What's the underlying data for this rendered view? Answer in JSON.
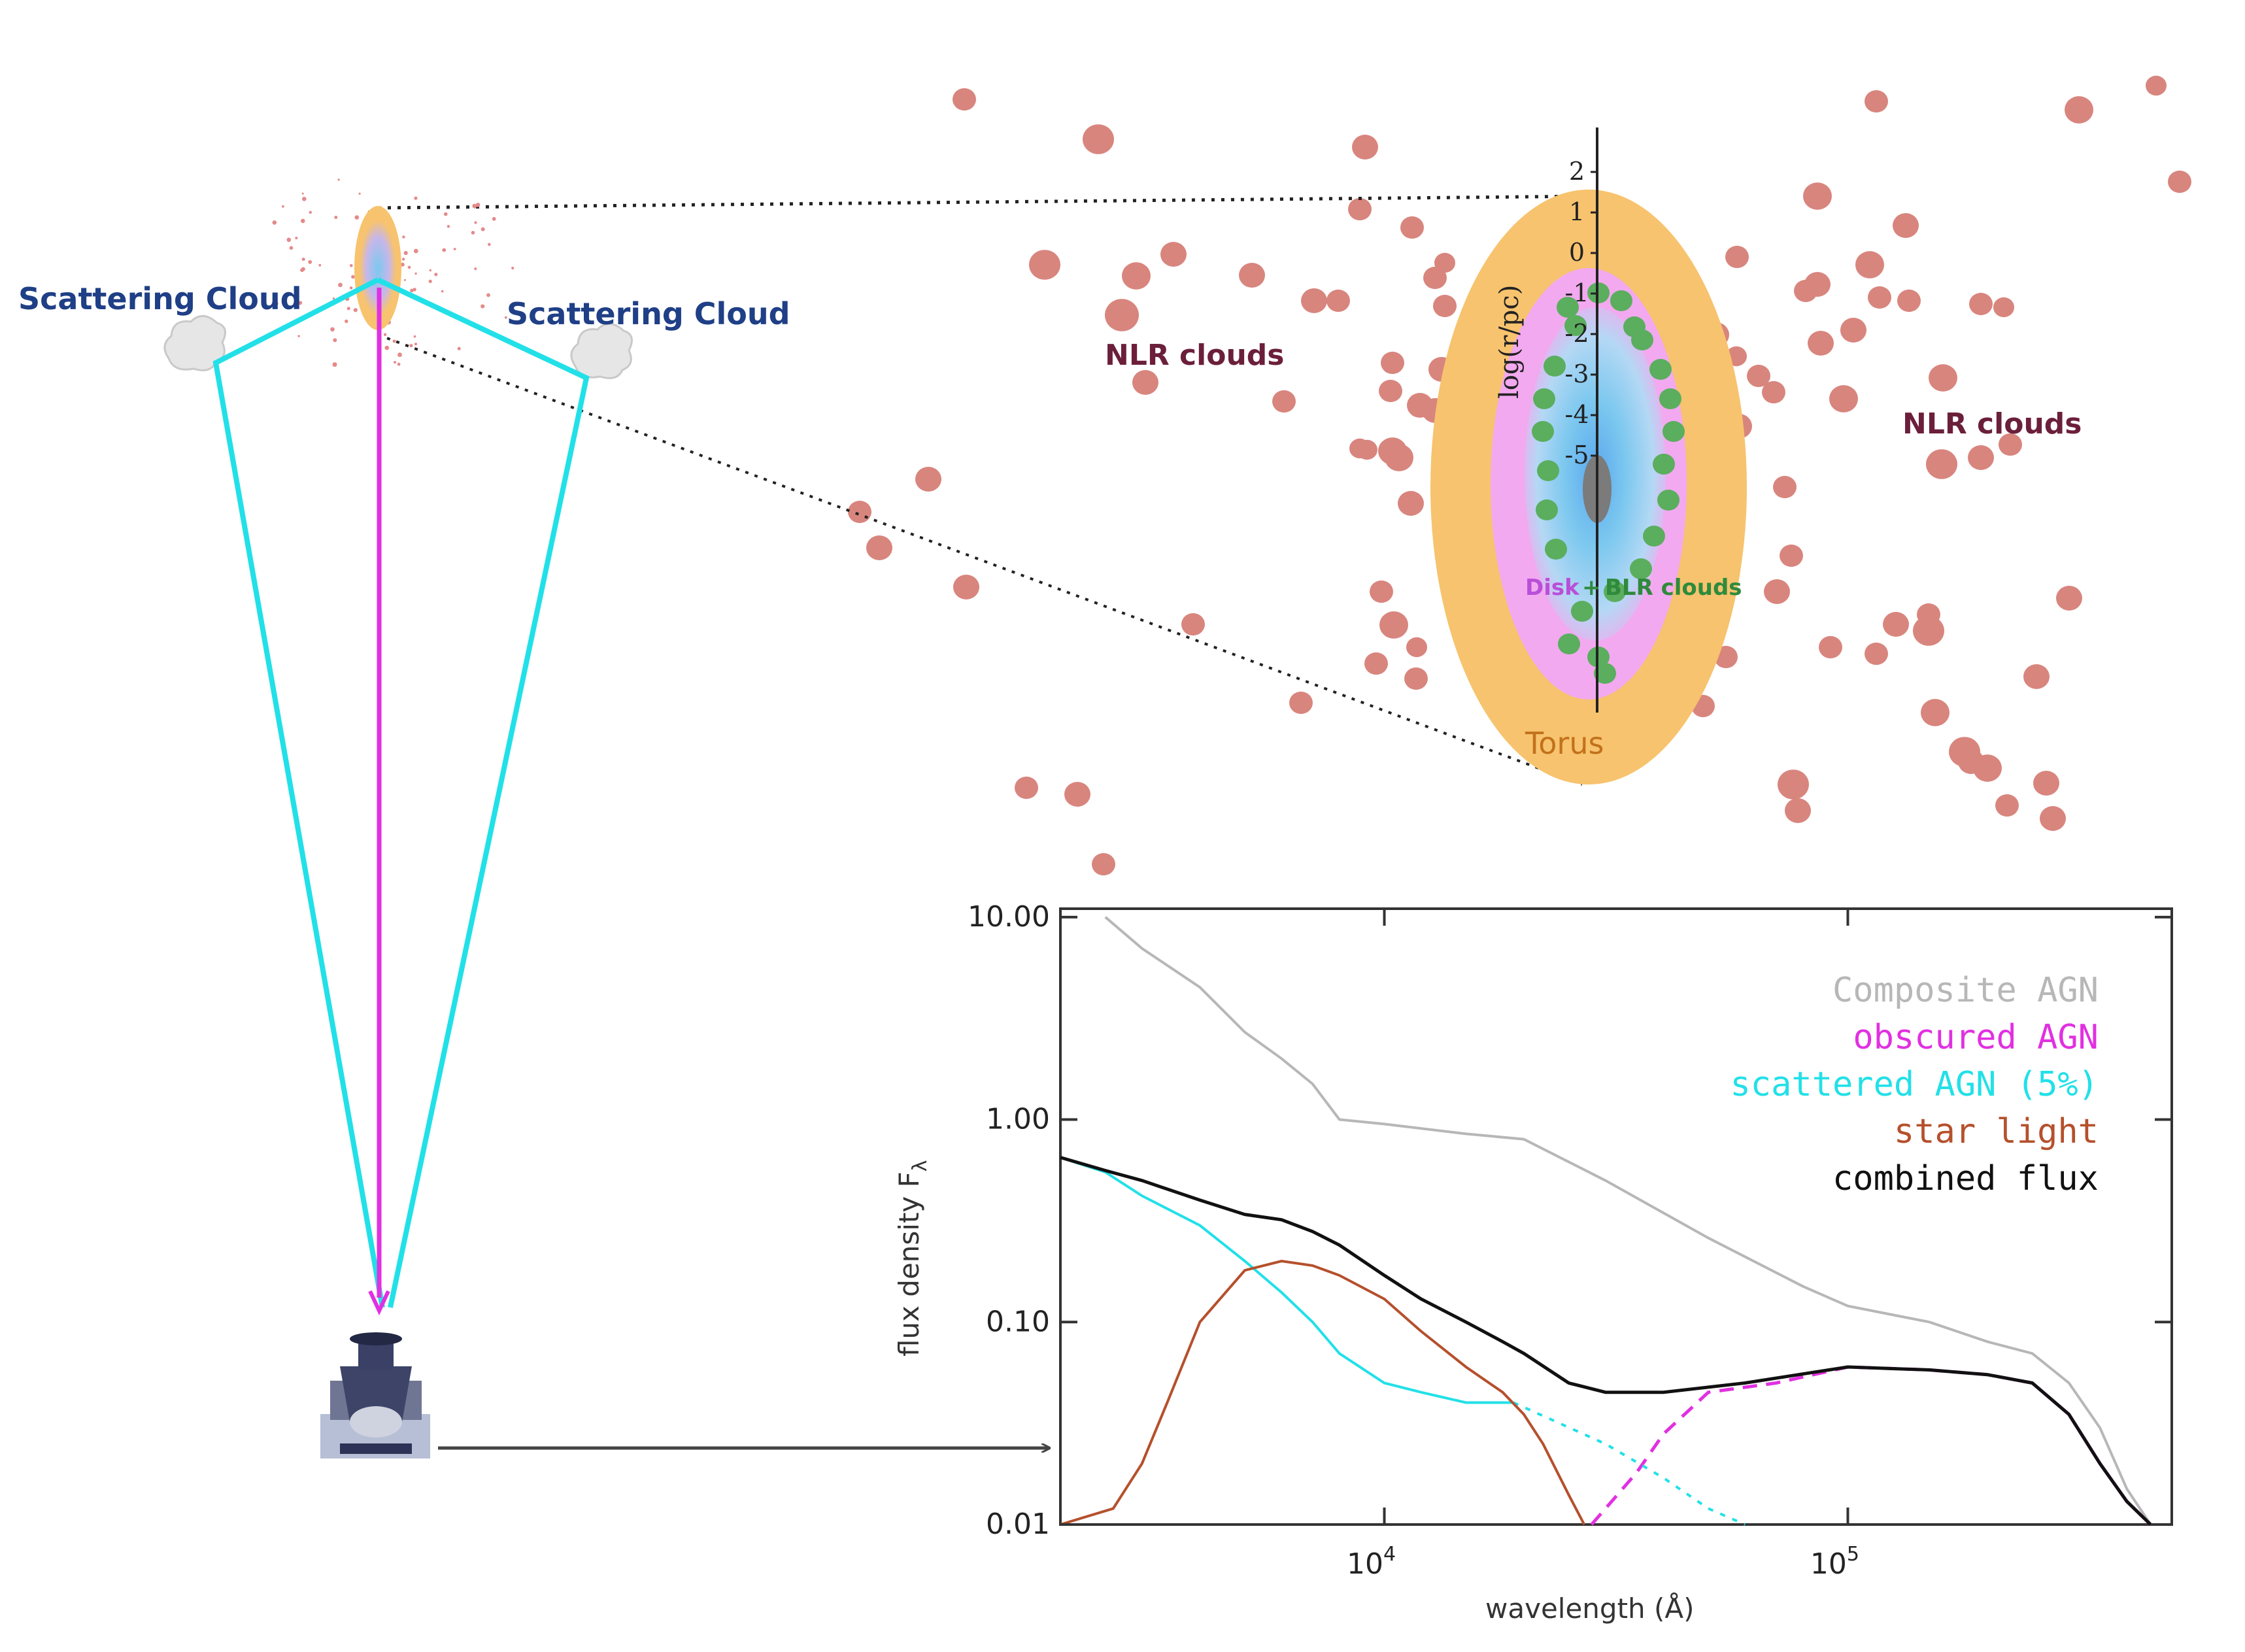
{
  "labels": {
    "scattering_cloud_left": "Scattering Cloud",
    "scattering_cloud_right": "Scattering Cloud",
    "nlr_left": "NLR clouds",
    "nlr_right": "NLR clouds",
    "torus": "Torus",
    "disk": "Disk",
    "plus": "+",
    "blr": "BLR clouds",
    "radius_axis": "log(r/pc)",
    "radius_ticks": [
      "2",
      "1",
      "0",
      "-1",
      "-2",
      "-3",
      "-4",
      "-5"
    ]
  },
  "colors": {
    "nlr": "#d8857e",
    "torus": "#f7c36e",
    "disk_pink": "#f2a9ef",
    "disk_blue": "#7cc8ef",
    "blr": "#5aae5e",
    "core": "#7b7b7b",
    "cyan": "#22e0e8",
    "magenta": "#e130e1",
    "star": "#b5502c",
    "gray": "#b7b7b7",
    "black": "#111111"
  },
  "chart_data": {
    "type": "line",
    "x_scale": "log",
    "y_scale": "log",
    "xlim": [
      2000,
      500000
    ],
    "ylim": [
      0.01,
      11
    ],
    "xlabel": "wavelength (Å)",
    "ylabel": "flux density F",
    "ylabel_sub": "λ",
    "y_ticks": [
      "0.01",
      "0.10",
      "1.00",
      "10.00"
    ],
    "y_tick_values": [
      0.01,
      0.1,
      1,
      10
    ],
    "x_ticks": [
      {
        "base": "10",
        "exp": "4",
        "value": 10000
      },
      {
        "base": "10",
        "exp": "5",
        "value": 100000
      }
    ],
    "legend": [
      {
        "label": "Composite AGN",
        "color": "#b7b7b7"
      },
      {
        "label": "obscured AGN",
        "color": "#e130e1"
      },
      {
        "label": "scattered AGN (5%)",
        "color": "#22e0e8"
      },
      {
        "label": "star light",
        "color": "#b5502c"
      },
      {
        "label": "combined flux",
        "color": "#111111"
      }
    ],
    "series": [
      {
        "name": "Composite AGN",
        "color": "#b7b7b7",
        "dash": "",
        "x": [
          2500,
          3000,
          4000,
          5000,
          6000,
          7000,
          8000,
          10000,
          15000,
          20000,
          30000,
          50000,
          80000,
          100000,
          150000,
          200000,
          250000,
          300000,
          350000,
          400000,
          450000
        ],
        "y": [
          10,
          7,
          4.5,
          2.7,
          2.0,
          1.5,
          1.0,
          0.95,
          0.85,
          0.8,
          0.5,
          0.26,
          0.15,
          0.12,
          0.1,
          0.08,
          0.07,
          0.05,
          0.03,
          0.015,
          0.01
        ]
      },
      {
        "name": "obscured AGN",
        "color": "#e130e1",
        "dash": "22 14",
        "x": [
          28000,
          30000,
          35000,
          40000,
          50000,
          70000,
          100000,
          150000,
          200000,
          250000,
          300000,
          350000,
          400000,
          450000
        ],
        "y": [
          0.01,
          0.012,
          0.018,
          0.028,
          0.045,
          0.05,
          0.06,
          0.058,
          0.055,
          0.05,
          0.035,
          0.02,
          0.013,
          0.01
        ],
        "dash_until": 250000
      },
      {
        "name": "scattered AGN (5%)",
        "color": "#22e0e8",
        "dash": "",
        "x": [
          2000,
          2500,
          3000,
          4000,
          5000,
          6000,
          7000,
          8000,
          10000,
          12000,
          15000,
          19000
        ],
        "y": [
          0.65,
          0.55,
          0.42,
          0.3,
          0.2,
          0.14,
          0.1,
          0.07,
          0.05,
          0.045,
          0.04,
          0.04
        ]
      },
      {
        "name": "scattered AGN (5%) extension",
        "color": "#22e0e8",
        "dash": "8 12",
        "x": [
          19000,
          30000,
          40000,
          50000,
          60000
        ],
        "y": [
          0.04,
          0.025,
          0.017,
          0.012,
          0.01
        ]
      },
      {
        "name": "star light",
        "color": "#b5502c",
        "dash": "",
        "x": [
          2000,
          2600,
          3000,
          3400,
          4000,
          5000,
          6000,
          7000,
          8000,
          10000,
          12000,
          15000,
          18000,
          20000,
          22000,
          25000,
          27000
        ],
        "y": [
          0.01,
          0.012,
          0.02,
          0.04,
          0.1,
          0.18,
          0.2,
          0.19,
          0.17,
          0.13,
          0.09,
          0.06,
          0.045,
          0.035,
          0.025,
          0.014,
          0.01
        ]
      },
      {
        "name": "combined flux",
        "color": "#111111",
        "dash": "",
        "x": [
          2000,
          2500,
          3000,
          4000,
          5000,
          6000,
          7000,
          8000,
          10000,
          12000,
          15000,
          18000,
          20000,
          25000,
          30000,
          40000,
          60000,
          100000,
          150000,
          200000,
          250000,
          300000,
          350000,
          400000,
          450000
        ],
        "y": [
          0.65,
          0.56,
          0.5,
          0.4,
          0.34,
          0.32,
          0.28,
          0.24,
          0.17,
          0.13,
          0.1,
          0.08,
          0.07,
          0.05,
          0.045,
          0.045,
          0.05,
          0.06,
          0.058,
          0.055,
          0.05,
          0.035,
          0.02,
          0.013,
          0.01
        ]
      }
    ]
  }
}
